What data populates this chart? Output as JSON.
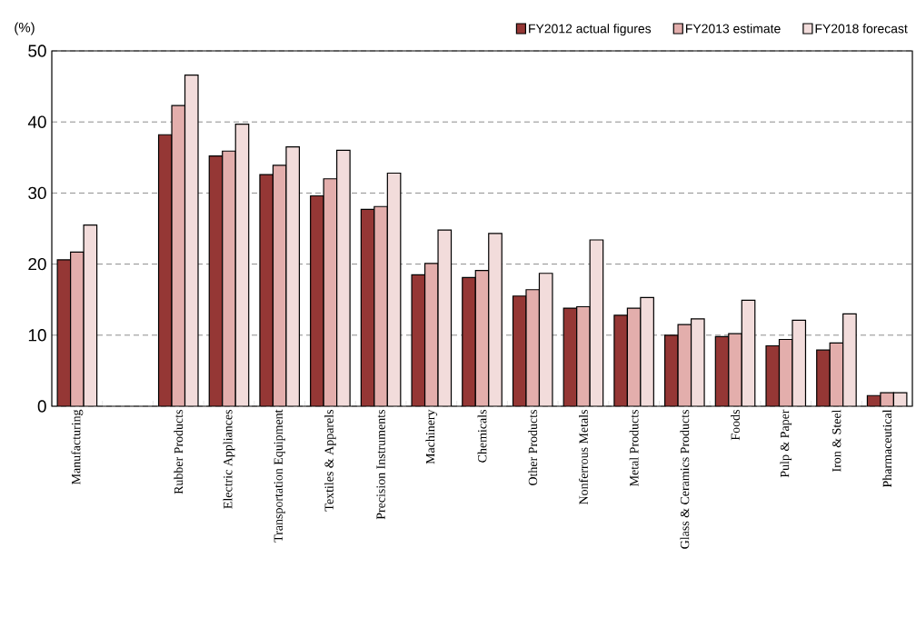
{
  "chart_data": {
    "type": "bar",
    "ylabel": "(%)",
    "categories": [
      "Manufacturing",
      null,
      "Rubber Products",
      "Electric Appliances",
      "Transportation Equipment",
      "Textiles & Apparels",
      "Precision Instruments",
      "Machinery",
      "Chemicals",
      "Other Products",
      "Nonferrous Metals",
      "Metal Products",
      "Glass & Ceramics Products",
      "Foods",
      "Pulp & Paper",
      "Iron & Steel",
      "Pharmaceutical"
    ],
    "series": [
      {
        "name": "FY2012 actual figures",
        "color": "#953735",
        "values": [
          20.6,
          null,
          38.2,
          35.2,
          32.6,
          29.6,
          27.7,
          18.5,
          18.1,
          15.5,
          13.8,
          12.8,
          10.0,
          9.8,
          8.5,
          7.9,
          1.5
        ]
      },
      {
        "name": "FY2013 estimate",
        "color": "#e3aeac",
        "values": [
          21.7,
          null,
          42.3,
          35.9,
          33.9,
          32.0,
          28.1,
          20.1,
          19.1,
          16.4,
          14.0,
          13.8,
          11.5,
          10.2,
          9.4,
          8.9,
          1.9
        ]
      },
      {
        "name": "FY2018 forecast",
        "color": "#f2dcdb",
        "values": [
          25.5,
          null,
          46.6,
          39.7,
          36.5,
          36.0,
          32.8,
          24.8,
          24.3,
          18.7,
          23.4,
          15.3,
          12.3,
          14.9,
          12.1,
          13.0,
          1.9
        ]
      }
    ],
    "ylim": [
      0,
      50
    ],
    "yticks": [
      0,
      10,
      20,
      30,
      40,
      50
    ],
    "grid": "y",
    "legend": "top right"
  }
}
